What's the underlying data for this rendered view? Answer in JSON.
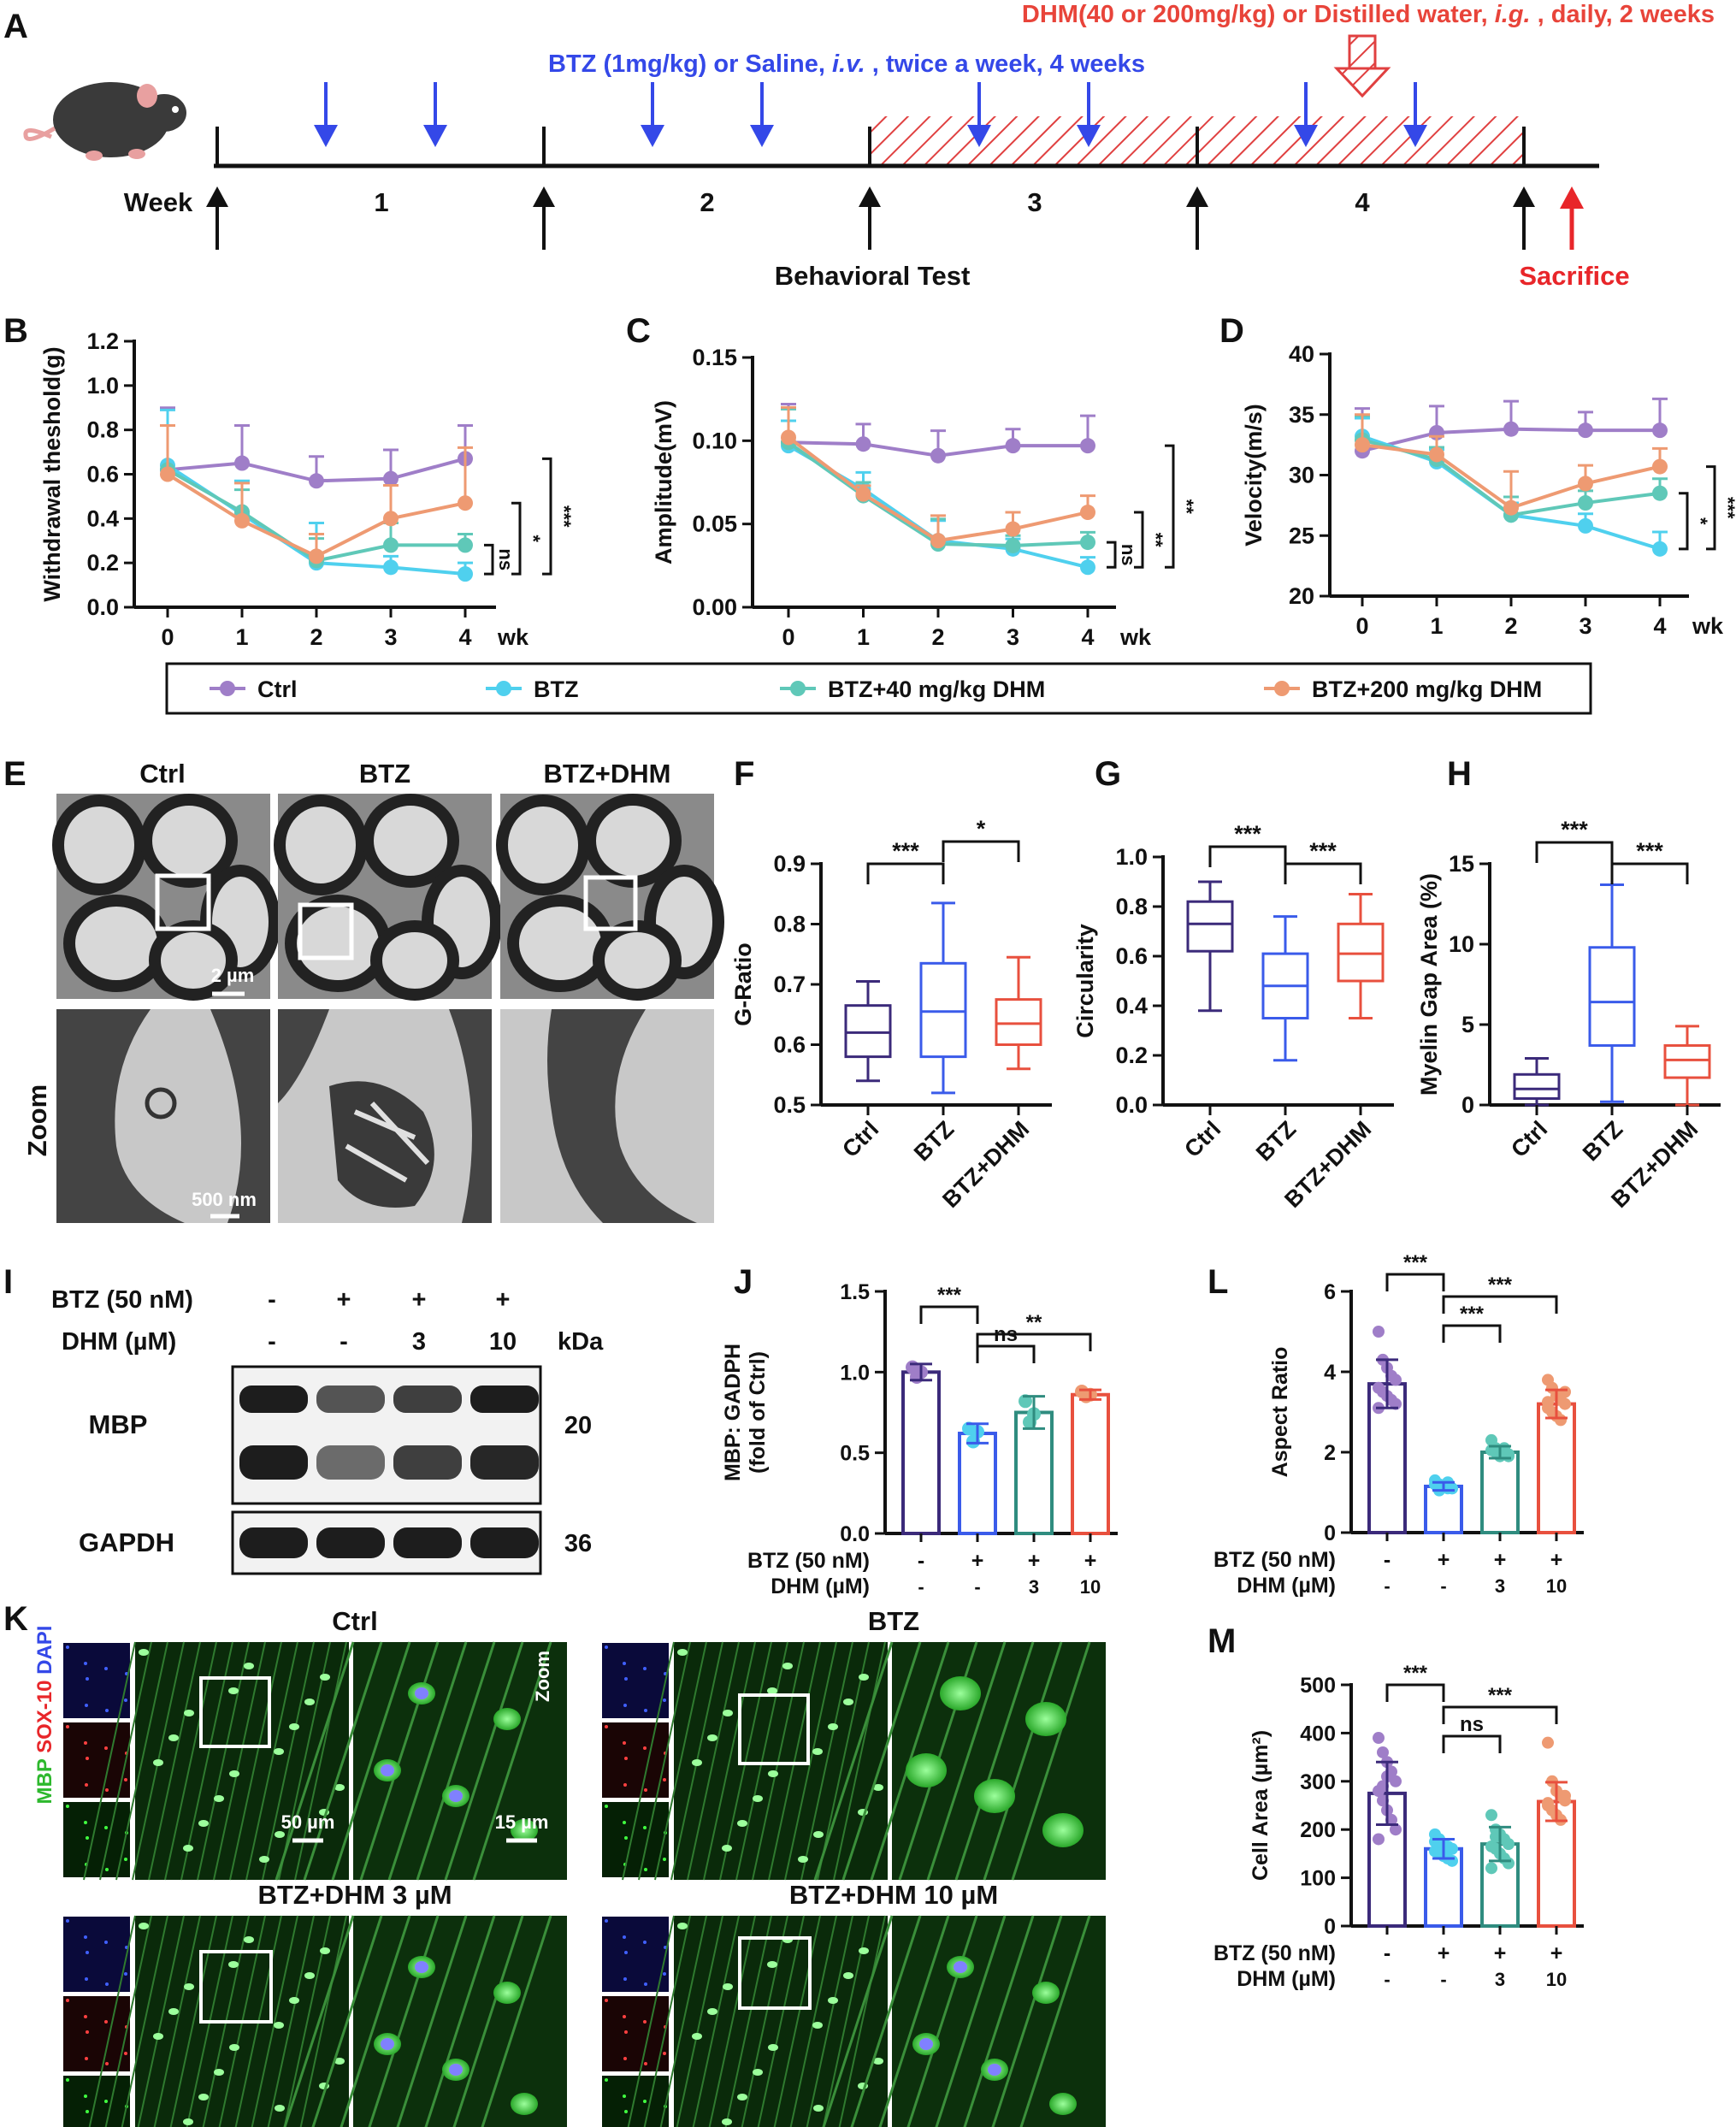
{
  "panel_letters": [
    "A",
    "B",
    "C",
    "D",
    "E",
    "F",
    "G",
    "H",
    "I",
    "J",
    "L",
    "K",
    "M"
  ],
  "colors": {
    "ctrl": "#9f7ec8",
    "btz": "#4fd0ee",
    "dhm40": "#5fc8b8",
    "dhm200": "#ee9a72",
    "dark": "#3b2a7a",
    "blue": "#3a5bea",
    "teal": "#2f8c7f",
    "red": "#e8503e",
    "dhm_text": "#e8443a",
    "btz_text": "#3448e8",
    "hatch": "#e04040"
  },
  "timeline": {
    "dhm_text_pre": "DHM(40 or 200mg/kg) or Distilled water, ",
    "dhm_text_ig": "i.g.",
    "dhm_text_post": " , daily, 2 weeks",
    "btz_text_pre": "BTZ (1mg/kg) or Saline, ",
    "btz_text_iv": "i.v.",
    "btz_text_post": " , twice a week, 4 weeks",
    "week_label": "Week",
    "weeks": [
      "1",
      "2",
      "3",
      "4"
    ],
    "behavioral_test": "Behavioral Test",
    "sacrifice": "Sacrifice"
  },
  "legend": [
    "Ctrl",
    "BTZ",
    "BTZ+40 mg/kg DHM",
    "BTZ+200 mg/kg DHM"
  ],
  "chart_data": [
    {
      "id": "B",
      "type": "line",
      "ylabel": "Withdrawal theshold(g)",
      "xlabel": "wk",
      "x": [
        0,
        1,
        2,
        3,
        4
      ],
      "ylim": [
        0,
        1.2
      ],
      "yticks": [
        "0.0",
        "0.2",
        "0.4",
        "0.6",
        "0.8",
        "1.0",
        "1.2"
      ],
      "series": [
        {
          "name": "Ctrl",
          "values": [
            0.62,
            0.65,
            0.57,
            0.58,
            0.67
          ],
          "err": [
            0.28,
            0.17,
            0.11,
            0.13,
            0.15
          ]
        },
        {
          "name": "BTZ",
          "values": [
            0.64,
            0.42,
            0.2,
            0.18,
            0.15
          ],
          "err": [
            0.25,
            0.15,
            0.18,
            0.05,
            0.05
          ]
        },
        {
          "name": "BTZ+40 mg/kg DHM",
          "values": [
            0.62,
            0.43,
            0.21,
            0.28,
            0.28
          ],
          "err": [
            0.2,
            0.1,
            0.1,
            0.1,
            0.05
          ]
        },
        {
          "name": "BTZ+200 mg/kg DHM",
          "values": [
            0.6,
            0.39,
            0.23,
            0.4,
            0.47
          ],
          "err": [
            0.22,
            0.17,
            0.1,
            0.15,
            0.25
          ]
        }
      ],
      "sig": [
        "ns",
        "*",
        "***"
      ]
    },
    {
      "id": "C",
      "type": "line",
      "ylabel": "Amplitude(mV)",
      "xlabel": "wk",
      "x": [
        0,
        1,
        2,
        3,
        4
      ],
      "ylim": [
        0,
        0.15
      ],
      "yticks": [
        "0.00",
        "0.05",
        "0.10",
        "0.15"
      ],
      "series": [
        {
          "name": "Ctrl",
          "values": [
            0.099,
            0.098,
            0.091,
            0.097,
            0.097
          ],
          "err": [
            0.023,
            0.012,
            0.015,
            0.01,
            0.018
          ]
        },
        {
          "name": "BTZ",
          "values": [
            0.097,
            0.071,
            0.04,
            0.035,
            0.024
          ],
          "err": [
            0.015,
            0.01,
            0.012,
            0.006,
            0.006
          ]
        },
        {
          "name": "BTZ+40 mg/kg DHM",
          "values": [
            0.099,
            0.067,
            0.038,
            0.037,
            0.039
          ],
          "err": [
            0.02,
            0.008,
            0.015,
            0.006,
            0.006
          ]
        },
        {
          "name": "BTZ+200 mg/kg DHM",
          "values": [
            0.102,
            0.068,
            0.04,
            0.047,
            0.057
          ],
          "err": [
            0.018,
            0.005,
            0.015,
            0.01,
            0.01
          ]
        }
      ],
      "sig": [
        "ns",
        "**",
        "**"
      ]
    },
    {
      "id": "D",
      "type": "line",
      "ylabel": "Velocity(m/s)",
      "xlabel": "wk",
      "x": [
        0,
        1,
        2,
        3,
        4
      ],
      "ylim": [
        20,
        40
      ],
      "yticks": [
        "20",
        "25",
        "30",
        "35",
        "40"
      ],
      "series": [
        {
          "name": "Ctrl",
          "values": [
            32.0,
            33.5,
            33.8,
            33.7,
            33.7
          ],
          "err": [
            3.5,
            2.2,
            2.3,
            1.5,
            2.6
          ]
        },
        {
          "name": "BTZ",
          "values": [
            33.2,
            31.1,
            26.7,
            25.8,
            23.9
          ],
          "err": [
            1.5,
            1.0,
            1.0,
            1.0,
            1.4
          ]
        },
        {
          "name": "BTZ+40 mg/kg DHM",
          "values": [
            32.9,
            31.3,
            26.7,
            27.7,
            28.5
          ],
          "err": [
            2.0,
            1.0,
            1.5,
            1.0,
            1.2
          ]
        },
        {
          "name": "BTZ+200 mg/kg DHM",
          "values": [
            32.5,
            31.7,
            27.3,
            29.3,
            30.7
          ],
          "err": [
            2.5,
            1.5,
            3.0,
            1.5,
            1.5
          ]
        }
      ],
      "sig": [
        "*",
        "***",
        "***"
      ]
    },
    {
      "id": "F",
      "type": "box",
      "ylabel": "G-Ratio",
      "categories": [
        "Ctrl",
        "BTZ",
        "BTZ+DHM"
      ],
      "ylim": [
        0.5,
        0.9
      ],
      "yticks": [
        "0.5",
        "0.6",
        "0.7",
        "0.8",
        "0.9"
      ],
      "boxes": [
        {
          "min": 0.54,
          "q1": 0.58,
          "median": 0.62,
          "q3": 0.665,
          "max": 0.705
        },
        {
          "min": 0.52,
          "q1": 0.58,
          "median": 0.655,
          "q3": 0.735,
          "max": 0.835
        },
        {
          "min": 0.56,
          "q1": 0.6,
          "median": 0.635,
          "q3": 0.675,
          "max": 0.745
        }
      ],
      "sig": [
        "***",
        "*"
      ]
    },
    {
      "id": "G",
      "type": "box",
      "ylabel": "Circularity",
      "categories": [
        "Ctrl",
        "BTZ",
        "BTZ+DHM"
      ],
      "ylim": [
        0,
        1.0
      ],
      "yticks": [
        "0.0",
        "0.2",
        "0.4",
        "0.6",
        "0.8",
        "1.0"
      ],
      "boxes": [
        {
          "min": 0.38,
          "q1": 0.62,
          "median": 0.73,
          "q3": 0.82,
          "max": 0.9
        },
        {
          "min": 0.18,
          "q1": 0.35,
          "median": 0.48,
          "q3": 0.61,
          "max": 0.76
        },
        {
          "min": 0.35,
          "q1": 0.5,
          "median": 0.61,
          "q3": 0.73,
          "max": 0.85
        }
      ],
      "sig": [
        "***",
        "***"
      ]
    },
    {
      "id": "H",
      "type": "box",
      "ylabel": "Myelin Gap Area (%)",
      "categories": [
        "Ctrl",
        "BTZ",
        "BTZ+DHM"
      ],
      "ylim": [
        0,
        15
      ],
      "yticks": [
        "0",
        "5",
        "10",
        "15"
      ],
      "boxes": [
        {
          "min": 0,
          "q1": 0.4,
          "median": 1.0,
          "q3": 1.9,
          "max": 2.9
        },
        {
          "min": 0.2,
          "q1": 3.7,
          "median": 6.4,
          "q3": 9.8,
          "max": 13.7
        },
        {
          "min": 0,
          "q1": 1.7,
          "median": 2.8,
          "q3": 3.7,
          "max": 4.9
        }
      ],
      "sig": [
        "***",
        "***"
      ]
    },
    {
      "id": "J",
      "type": "bar",
      "ylabel": "MBP: GADPH (fold of Ctrl)",
      "ylim": [
        0,
        1.5
      ],
      "yticks": [
        "0.0",
        "0.5",
        "1.0",
        "1.5"
      ],
      "row1_label": "BTZ (50 nM)",
      "row1": [
        "-",
        "+",
        "+",
        "+"
      ],
      "row2_label": "DHM (µM)",
      "row2": [
        "-",
        "-",
        "3",
        "10"
      ],
      "values": [
        1.0,
        0.62,
        0.75,
        0.86
      ],
      "err": [
        0.05,
        0.06,
        0.1,
        0.03
      ],
      "points": [
        [
          1.03,
          0.97,
          1.0
        ],
        [
          0.65,
          0.57,
          0.63
        ],
        [
          0.82,
          0.69,
          0.74
        ],
        [
          0.88,
          0.85,
          0.86
        ]
      ],
      "sig": [
        "***",
        "ns",
        "**"
      ]
    },
    {
      "id": "L",
      "type": "bar",
      "ylabel": "Aspect Ratio",
      "ylim": [
        0,
        6
      ],
      "yticks": [
        "0",
        "2",
        "4",
        "6"
      ],
      "row1_label": "BTZ (50 nM)",
      "row1": [
        "-",
        "+",
        "+",
        "+"
      ],
      "row2_label": "DHM (µM)",
      "row2": [
        "-",
        "-",
        "3",
        "10"
      ],
      "values": [
        3.7,
        1.15,
        2.0,
        3.2
      ],
      "err": [
        0.6,
        0.1,
        0.15,
        0.35
      ],
      "points": [
        [
          5.0,
          4.3,
          4.1,
          3.9,
          3.8,
          3.6,
          3.5,
          3.4,
          3.3,
          3.2,
          3.1
        ],
        [
          1.3,
          1.2,
          1.15,
          1.1,
          1.1,
          1.2,
          1.05,
          1.15,
          1.25,
          1.1
        ],
        [
          2.3,
          2.1,
          2.0,
          1.95,
          1.9,
          2.05,
          2.0,
          1.9,
          2.1,
          1.95
        ],
        [
          3.8,
          3.6,
          3.4,
          3.3,
          3.2,
          3.1,
          3.0,
          2.9,
          2.8,
          3.5,
          3.25
        ]
      ],
      "sig": [
        "***",
        "***",
        "***"
      ]
    },
    {
      "id": "M",
      "type": "bar",
      "ylabel": "Cell Area (µm²)",
      "ylim": [
        0,
        500
      ],
      "yticks": [
        "0",
        "100",
        "200",
        "300",
        "400",
        "500"
      ],
      "row1_label": "BTZ (50 nM)",
      "row1": [
        "-",
        "+",
        "+",
        "+"
      ],
      "row2_label": "DHM (µM)",
      "row2": [
        "-",
        "-",
        "3",
        "10"
      ],
      "values": [
        275,
        160,
        170,
        258
      ],
      "err": [
        65,
        20,
        35,
        40
      ],
      "points": [
        [
          390,
          360,
          340,
          320,
          300,
          280,
          260,
          240,
          220,
          200,
          180,
          290,
          310
        ],
        [
          190,
          180,
          170,
          165,
          160,
          155,
          150,
          145,
          140,
          135,
          175,
          160
        ],
        [
          230,
          200,
          190,
          180,
          170,
          165,
          160,
          150,
          140,
          130,
          120,
          185
        ],
        [
          380,
          300,
          280,
          270,
          260,
          250,
          240,
          230,
          220,
          270,
          255
        ]
      ],
      "sig": [
        "***",
        "ns",
        "***"
      ]
    }
  ],
  "panelE": {
    "cols": [
      "Ctrl",
      "BTZ",
      "BTZ+DHM"
    ],
    "zoom": "Zoom",
    "scale_top": "2 µm",
    "scale_bottom": "500 nm"
  },
  "panelI": {
    "btz_label": "BTZ (50 nM)",
    "btz": [
      "-",
      "+",
      "+",
      "+"
    ],
    "dhm_label": "DHM (µM)",
    "dhm": [
      "-",
      "-",
      "3",
      "10"
    ],
    "kda": "kDa",
    "mbp": "MBP",
    "mbp_kda": "20",
    "gapdh": "GAPDH",
    "gapdh_kda": "36"
  },
  "panelK": {
    "titles": [
      "Ctrl",
      "BTZ",
      "BTZ+DHM 3 µM",
      "BTZ+DHM 10 µM"
    ],
    "stain_mbp": "MBP",
    "stain_sox": "SOX-10",
    "stain_dapi": "DAPI",
    "zoom": "Zoom",
    "scale1": "50 µm",
    "scale2": "15 µm"
  }
}
